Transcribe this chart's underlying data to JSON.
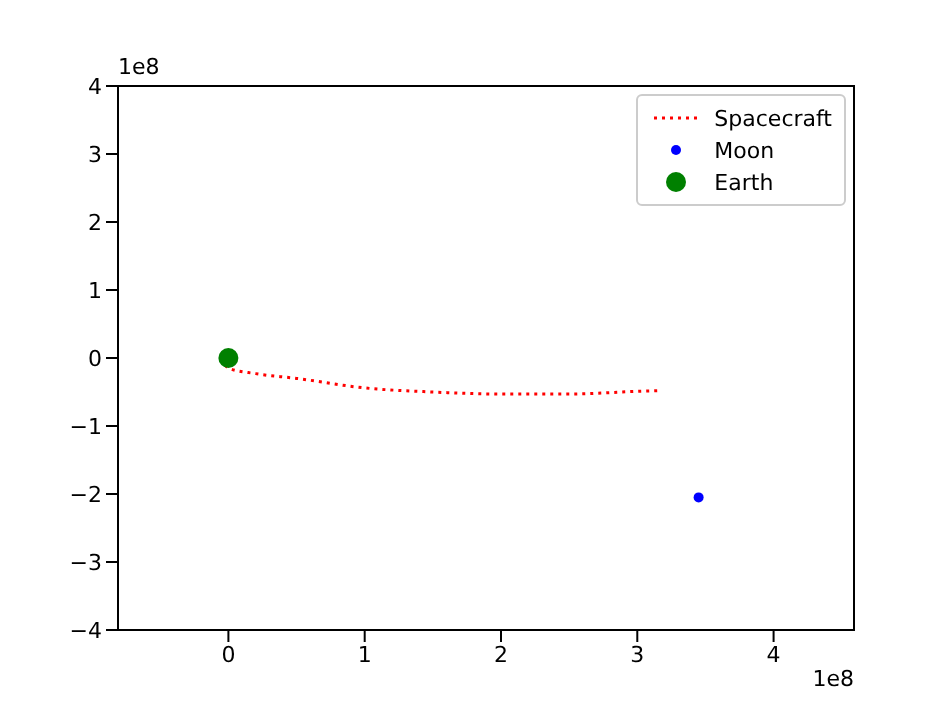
{
  "chart_data": {
    "type": "scatter",
    "xlim": [
      -0.81,
      4.59
    ],
    "xticks": [
      0,
      1,
      2,
      3,
      4
    ],
    "ylim": [
      -4,
      4
    ],
    "yticks": [
      -4,
      -3,
      -2,
      -1,
      0,
      1,
      2,
      3,
      4
    ],
    "annotations": [
      "1e8",
      "1e8"
    ],
    "legend": "top right",
    "series": [
      {
        "name": "Spacecraft",
        "type": "line",
        "color": "#ff0000",
        "line_style": "dotted",
        "marker": "none",
        "x": [
          -0.05,
          0,
          0.2,
          0.5,
          1,
          1.5,
          2,
          2.5,
          3,
          3.15
        ],
        "values": [
          0,
          -0.15,
          -0.23,
          -0.3,
          -0.44,
          -0.5,
          -0.53,
          -0.53,
          -0.49,
          -0.48
        ]
      },
      {
        "name": "Moon",
        "color": "#0000ff",
        "marker": "circle",
        "x": [
          3.45
        ],
        "values": [
          -2.05
        ]
      },
      {
        "name": "Earth",
        "color": "#008000",
        "marker": "circle",
        "x": [
          0
        ],
        "values": [
          0
        ]
      }
    ]
  }
}
